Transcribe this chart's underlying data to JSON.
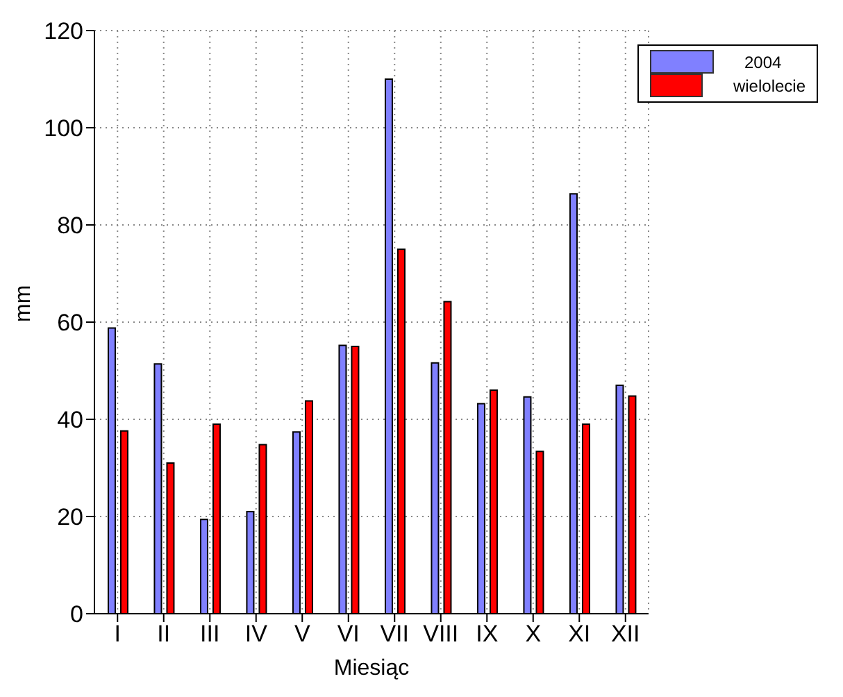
{
  "chart_data": {
    "type": "bar",
    "xlabel": "Miesiąc",
    "ylabel": "mm",
    "categories": [
      "I",
      "II",
      "III",
      "IV",
      "V",
      "VI",
      "VII",
      "VIII",
      "IX",
      "X",
      "XI",
      "XII"
    ],
    "series": [
      {
        "name": "2004",
        "color": "#8080ff",
        "values": [
          58.8,
          51.4,
          19.4,
          21,
          37.4,
          55.2,
          110,
          51.6,
          43.2,
          44.6,
          86.4,
          47
        ]
      },
      {
        "name": "wielolecie",
        "color": "#ff0000",
        "values": [
          37.6,
          31,
          39,
          34.8,
          43.8,
          55,
          75,
          64.2,
          46,
          33.4,
          39,
          44.8
        ]
      }
    ],
    "ylim": [
      0,
      120
    ],
    "yticks": [
      0,
      20,
      40,
      60,
      80,
      100,
      120
    ],
    "grid": true,
    "legend": "top right"
  }
}
